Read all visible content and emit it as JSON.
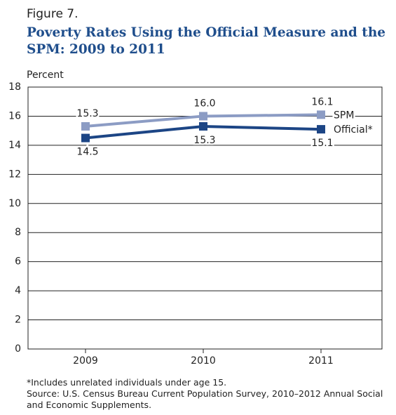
{
  "chart_data": {
    "type": "line",
    "figure_label": "Figure 7.",
    "title": "Poverty Rates Using the Official Measure and the SPM: 2009 to 2011",
    "y_label": "Percent",
    "categories": [
      "2009",
      "2010",
      "2011"
    ],
    "series": [
      {
        "name": "SPM",
        "color": "#8c9cc4",
        "values": [
          15.3,
          16.0,
          16.1
        ],
        "value_labels": [
          "15.3",
          "16.0",
          "16.1"
        ]
      },
      {
        "name": "Official*",
        "color": "#1c4585",
        "values": [
          14.5,
          15.3,
          15.1
        ]
      }
    ],
    "ylim": [
      0,
      18
    ],
    "yticks": [
      0,
      2,
      4,
      6,
      8,
      10,
      12,
      14,
      16,
      18
    ],
    "grid": true,
    "notes": [
      "*Includes unrelated individuals under age 15.",
      "Source: U.S. Census Bureau Current Population Survey, 2010–2012 Annual Social and Economic Supplements."
    ]
  }
}
